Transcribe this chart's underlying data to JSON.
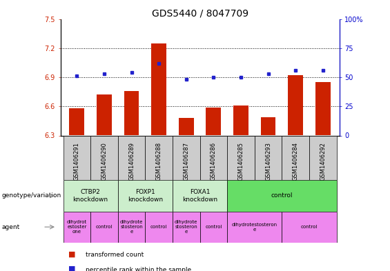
{
  "title": "GDS5440 / 8047709",
  "samples": [
    "GSM1406291",
    "GSM1406290",
    "GSM1406289",
    "GSM1406288",
    "GSM1406287",
    "GSM1406286",
    "GSM1406285",
    "GSM1406293",
    "GSM1406284",
    "GSM1406292"
  ],
  "transformed_count": [
    6.58,
    6.72,
    6.76,
    7.25,
    6.48,
    6.59,
    6.61,
    6.49,
    6.92,
    6.85
  ],
  "percentile_rank": [
    51,
    53,
    54,
    62,
    48,
    50,
    50,
    53,
    56,
    56
  ],
  "ylim_left": [
    6.3,
    7.5
  ],
  "ylim_right": [
    0,
    100
  ],
  "yticks_left": [
    6.3,
    6.6,
    6.9,
    7.2,
    7.5
  ],
  "yticks_right": [
    0,
    25,
    50,
    75,
    100
  ],
  "bar_color": "#cc2200",
  "dot_color": "#2222cc",
  "genotype_groups": [
    {
      "label": "CTBP2\nknockdown",
      "start": 0,
      "end": 2,
      "color": "#cceecc"
    },
    {
      "label": "FOXP1\nknockdown",
      "start": 2,
      "end": 4,
      "color": "#cceecc"
    },
    {
      "label": "FOXA1\nknockdown",
      "start": 4,
      "end": 6,
      "color": "#cceecc"
    },
    {
      "label": "control",
      "start": 6,
      "end": 10,
      "color": "#66dd66"
    }
  ],
  "agent_groups": [
    {
      "label": "dihydrot\nestoster\none",
      "start": 0,
      "end": 1,
      "color": "#ee88ee"
    },
    {
      "label": "control",
      "start": 1,
      "end": 2,
      "color": "#ee88ee"
    },
    {
      "label": "dihydrote\nstosteron\ne",
      "start": 2,
      "end": 3,
      "color": "#ee88ee"
    },
    {
      "label": "control",
      "start": 3,
      "end": 4,
      "color": "#ee88ee"
    },
    {
      "label": "dihydrote\nstosteron\ne",
      "start": 4,
      "end": 5,
      "color": "#ee88ee"
    },
    {
      "label": "control",
      "start": 5,
      "end": 6,
      "color": "#ee88ee"
    },
    {
      "label": "dihydrotestosteron\ne",
      "start": 6,
      "end": 8,
      "color": "#ee88ee"
    },
    {
      "label": "control",
      "start": 8,
      "end": 10,
      "color": "#ee88ee"
    }
  ],
  "legend_items": [
    {
      "label": "transformed count",
      "color": "#cc2200"
    },
    {
      "label": "percentile rank within the sample",
      "color": "#2222cc"
    }
  ],
  "title_fontsize": 10,
  "tick_fontsize": 7,
  "label_fontsize": 7.5,
  "sample_box_color": "#cccccc",
  "left_label_color": "#888888"
}
